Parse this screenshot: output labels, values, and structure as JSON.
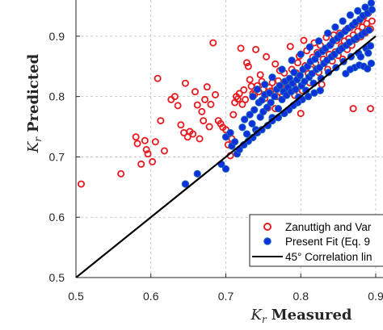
{
  "chart_data": {
    "type": "scatter",
    "xlabel": {
      "symbol": "K",
      "sub": "r",
      "text": "Measured"
    },
    "ylabel": {
      "symbol": "K",
      "sub": "r",
      "text": "Predicted"
    },
    "xlim": [
      0.5,
      0.9
    ],
    "ylim": [
      0.5,
      0.96
    ],
    "x_ticks": [
      "0.5",
      "0.6",
      "0.7",
      "0.8",
      "0.9"
    ],
    "y_ticks": [
      "0.5",
      "0.6",
      "0.7",
      "0.8",
      "0.9"
    ],
    "grid": true,
    "legend_position": "bottom-right",
    "legend": [
      {
        "label": "Zanuttigh and Var",
        "marker": "open-circle",
        "color": "#e8191f"
      },
      {
        "label": "Present Fit (Eq. 9",
        "marker": "filled-circle",
        "color": "#1030e0"
      },
      {
        "label": "45° Correlation lin",
        "marker": "line",
        "color": "#000000"
      }
    ],
    "reference_line": {
      "from": [
        0.5,
        0.5
      ],
      "to": [
        0.9,
        0.9
      ],
      "color": "#000000"
    },
    "series": [
      {
        "name": "Zanuttigh and Var",
        "style": "open",
        "color": "#e8191f",
        "points": [
          [
            0.507,
            0.655
          ],
          [
            0.56,
            0.672
          ],
          [
            0.58,
            0.733
          ],
          [
            0.582,
            0.722
          ],
          [
            0.587,
            0.688
          ],
          [
            0.592,
            0.727
          ],
          [
            0.594,
            0.712
          ],
          [
            0.596,
            0.705
          ],
          [
            0.602,
            0.692
          ],
          [
            0.606,
            0.725
          ],
          [
            0.609,
            0.83
          ],
          [
            0.613,
            0.76
          ],
          [
            0.618,
            0.71
          ],
          [
            0.627,
            0.795
          ],
          [
            0.632,
            0.8
          ],
          [
            0.636,
            0.785
          ],
          [
            0.64,
            0.753
          ],
          [
            0.644,
            0.74
          ],
          [
            0.646,
            0.822
          ],
          [
            0.649,
            0.733
          ],
          [
            0.652,
            0.742
          ],
          [
            0.656,
            0.738
          ],
          [
            0.659,
            0.808
          ],
          [
            0.662,
            0.786
          ],
          [
            0.665,
            0.73
          ],
          [
            0.668,
            0.775
          ],
          [
            0.67,
            0.76
          ],
          [
            0.672,
            0.795
          ],
          [
            0.675,
            0.816
          ],
          [
            0.678,
            0.75
          ],
          [
            0.68,
            0.787
          ],
          [
            0.683,
            0.889
          ],
          [
            0.686,
            0.803
          ],
          [
            0.69,
            0.76
          ],
          [
            0.693,
            0.755
          ],
          [
            0.696,
            0.749
          ],
          [
            0.7,
            0.745
          ],
          [
            0.703,
            0.72
          ],
          [
            0.706,
            0.702
          ],
          [
            0.708,
            0.73
          ],
          [
            0.71,
            0.77
          ],
          [
            0.712,
            0.79
          ],
          [
            0.714,
            0.8
          ],
          [
            0.716,
            0.796
          ],
          [
            0.718,
            0.805
          ],
          [
            0.72,
            0.88
          ],
          [
            0.722,
            0.787
          ],
          [
            0.724,
            0.811
          ],
          [
            0.726,
            0.795
          ],
          [
            0.728,
            0.856
          ],
          [
            0.73,
            0.85
          ],
          [
            0.732,
            0.828
          ],
          [
            0.734,
            0.817
          ],
          [
            0.736,
            0.805
          ],
          [
            0.738,
            0.803
          ],
          [
            0.74,
            0.878
          ],
          [
            0.742,
            0.818
          ],
          [
            0.744,
            0.808
          ],
          [
            0.746,
            0.836
          ],
          [
            0.748,
            0.825
          ],
          [
            0.75,
            0.812
          ],
          [
            0.752,
            0.797
          ],
          [
            0.754,
            0.866
          ],
          [
            0.756,
            0.781
          ],
          [
            0.758,
            0.815
          ],
          [
            0.76,
            0.809
          ],
          [
            0.762,
            0.823
          ],
          [
            0.764,
            0.805
          ],
          [
            0.766,
            0.854
          ],
          [
            0.768,
            0.8
          ],
          [
            0.77,
            0.826
          ],
          [
            0.772,
            0.843
          ],
          [
            0.774,
            0.817
          ],
          [
            0.776,
            0.801
          ],
          [
            0.778,
            0.839
          ],
          [
            0.78,
            0.811
          ],
          [
            0.782,
            0.816
          ],
          [
            0.784,
            0.828
          ],
          [
            0.786,
            0.883
          ],
          [
            0.788,
            0.845
          ],
          [
            0.79,
            0.818
          ],
          [
            0.792,
            0.802
          ],
          [
            0.794,
            0.839
          ],
          [
            0.796,
            0.856
          ],
          [
            0.798,
            0.867
          ],
          [
            0.8,
            0.826
          ],
          [
            0.802,
            0.81
          ],
          [
            0.804,
            0.893
          ],
          [
            0.806,
            0.851
          ],
          [
            0.808,
            0.876
          ],
          [
            0.81,
            0.838
          ],
          [
            0.812,
            0.823
          ],
          [
            0.814,
            0.845
          ],
          [
            0.816,
            0.865
          ],
          [
            0.818,
            0.889
          ],
          [
            0.82,
            0.855
          ],
          [
            0.822,
            0.873
          ],
          [
            0.824,
            0.84
          ],
          [
            0.826,
            0.885
          ],
          [
            0.828,
            0.82
          ],
          [
            0.83,
            0.862
          ],
          [
            0.832,
            0.878
          ],
          [
            0.834,
            0.898
          ],
          [
            0.836,
            0.845
          ],
          [
            0.838,
            0.87
          ],
          [
            0.84,
            0.886
          ],
          [
            0.842,
            0.859
          ],
          [
            0.844,
            0.902
          ],
          [
            0.846,
            0.874
          ],
          [
            0.848,
            0.893
          ],
          [
            0.85,
            0.868
          ],
          [
            0.852,
            0.905
          ],
          [
            0.854,
            0.883
          ],
          [
            0.856,
            0.862
          ],
          [
            0.858,
            0.892
          ],
          [
            0.86,
            0.91
          ],
          [
            0.862,
            0.878
          ],
          [
            0.864,
            0.896
          ],
          [
            0.866,
            0.914
          ],
          [
            0.868,
            0.885
          ],
          [
            0.87,
            0.902
          ],
          [
            0.872,
            0.919
          ],
          [
            0.874,
            0.895
          ],
          [
            0.876,
            0.908
          ],
          [
            0.878,
            0.925
          ],
          [
            0.88,
            0.899
          ],
          [
            0.882,
            0.915
          ],
          [
            0.884,
            0.932
          ],
          [
            0.886,
            0.905
          ],
          [
            0.888,
            0.921
          ],
          [
            0.89,
            0.938
          ],
          [
            0.893,
            0.912
          ],
          [
            0.895,
            0.925
          ],
          [
            0.87,
            0.78
          ],
          [
            0.893,
            0.78
          ],
          [
            0.766,
            0.78
          ],
          [
            0.8,
            0.772
          ]
        ]
      },
      {
        "name": "Present Fit (Eq. 9",
        "style": "filled",
        "color": "#1030e0",
        "points": [
          [
            0.646,
            0.655
          ],
          [
            0.662,
            0.672
          ],
          [
            0.694,
            0.688
          ],
          [
            0.7,
            0.68
          ],
          [
            0.7,
            0.733
          ],
          [
            0.706,
            0.74
          ],
          [
            0.708,
            0.718
          ],
          [
            0.712,
            0.725
          ],
          [
            0.715,
            0.705
          ],
          [
            0.722,
            0.749
          ],
          [
            0.725,
            0.762
          ],
          [
            0.728,
            0.738
          ],
          [
            0.732,
            0.77
          ],
          [
            0.735,
            0.755
          ],
          [
            0.738,
            0.778
          ],
          [
            0.74,
            0.745
          ],
          [
            0.744,
            0.79
          ],
          [
            0.746,
            0.766
          ],
          [
            0.748,
            0.794
          ],
          [
            0.75,
            0.775
          ],
          [
            0.752,
            0.803
          ],
          [
            0.755,
            0.782
          ],
          [
            0.758,
            0.806
          ],
          [
            0.76,
            0.79
          ],
          [
            0.762,
            0.765
          ],
          [
            0.765,
            0.8
          ],
          [
            0.768,
            0.812
          ],
          [
            0.77,
            0.78
          ],
          [
            0.772,
            0.818
          ],
          [
            0.775,
            0.795
          ],
          [
            0.777,
            0.808
          ],
          [
            0.779,
            0.825
          ],
          [
            0.781,
            0.802
          ],
          [
            0.783,
            0.815
          ],
          [
            0.785,
            0.83
          ],
          [
            0.787,
            0.808
          ],
          [
            0.789,
            0.822
          ],
          [
            0.791,
            0.84
          ],
          [
            0.793,
            0.812
          ],
          [
            0.795,
            0.828
          ],
          [
            0.797,
            0.799
          ],
          [
            0.799,
            0.835
          ],
          [
            0.801,
            0.818
          ],
          [
            0.803,
            0.845
          ],
          [
            0.805,
            0.825
          ],
          [
            0.807,
            0.81
          ],
          [
            0.809,
            0.85
          ],
          [
            0.811,
            0.832
          ],
          [
            0.813,
            0.858
          ],
          [
            0.815,
            0.838
          ],
          [
            0.817,
            0.822
          ],
          [
            0.819,
            0.862
          ],
          [
            0.821,
            0.845
          ],
          [
            0.823,
            0.87
          ],
          [
            0.825,
            0.848
          ],
          [
            0.827,
            0.83
          ],
          [
            0.829,
            0.875
          ],
          [
            0.831,
            0.855
          ],
          [
            0.833,
            0.88
          ],
          [
            0.835,
            0.86
          ],
          [
            0.837,
            0.84
          ],
          [
            0.839,
            0.885
          ],
          [
            0.841,
            0.866
          ],
          [
            0.843,
            0.892
          ],
          [
            0.845,
            0.87
          ],
          [
            0.847,
            0.848
          ],
          [
            0.849,
            0.897
          ],
          [
            0.851,
            0.876
          ],
          [
            0.853,
            0.902
          ],
          [
            0.855,
            0.88
          ],
          [
            0.857,
            0.858
          ],
          [
            0.859,
            0.908
          ],
          [
            0.861,
            0.885
          ],
          [
            0.863,
            0.913
          ],
          [
            0.865,
            0.89
          ],
          [
            0.867,
            0.866
          ],
          [
            0.869,
            0.918
          ],
          [
            0.871,
            0.894
          ],
          [
            0.873,
            0.923
          ],
          [
            0.875,
            0.898
          ],
          [
            0.877,
            0.872
          ],
          [
            0.879,
            0.928
          ],
          [
            0.881,
            0.902
          ],
          [
            0.883,
            0.934
          ],
          [
            0.885,
            0.906
          ],
          [
            0.887,
            0.88
          ],
          [
            0.889,
            0.938
          ],
          [
            0.891,
            0.91
          ],
          [
            0.893,
            0.884
          ],
          [
            0.895,
            0.944
          ],
          [
            0.872,
            0.848
          ],
          [
            0.878,
            0.852
          ],
          [
            0.884,
            0.85
          ],
          [
            0.889,
            0.846
          ],
          [
            0.894,
            0.855
          ],
          [
            0.866,
            0.845
          ],
          [
            0.86,
            0.838
          ],
          [
            0.826,
            0.81
          ],
          [
            0.818,
            0.806
          ],
          [
            0.81,
            0.8
          ],
          [
            0.802,
            0.795
          ],
          [
            0.796,
            0.79
          ],
          [
            0.79,
            0.785
          ],
          [
            0.784,
            0.778
          ],
          [
            0.778,
            0.772
          ],
          [
            0.77,
            0.765
          ],
          [
            0.762,
            0.76
          ],
          [
            0.756,
            0.752
          ],
          [
            0.748,
            0.745
          ],
          [
            0.742,
            0.74
          ],
          [
            0.736,
            0.732
          ],
          [
            0.73,
            0.726
          ],
          [
            0.724,
            0.72
          ],
          [
            0.718,
            0.712
          ],
          [
            0.742,
            0.812
          ],
          [
            0.736,
            0.8
          ],
          [
            0.752,
            0.82
          ],
          [
            0.762,
            0.832
          ],
          [
            0.775,
            0.845
          ],
          [
            0.788,
            0.86
          ],
          [
            0.8,
            0.87
          ],
          [
            0.812,
            0.882
          ],
          [
            0.824,
            0.892
          ],
          [
            0.836,
            0.905
          ],
          [
            0.846,
            0.915
          ],
          [
            0.856,
            0.925
          ],
          [
            0.866,
            0.935
          ],
          [
            0.876,
            0.942
          ],
          [
            0.886,
            0.948
          ],
          [
            0.894,
            0.955
          ],
          [
            0.89,
            0.872
          ],
          [
            0.88,
            0.866
          ]
        ]
      }
    ]
  }
}
